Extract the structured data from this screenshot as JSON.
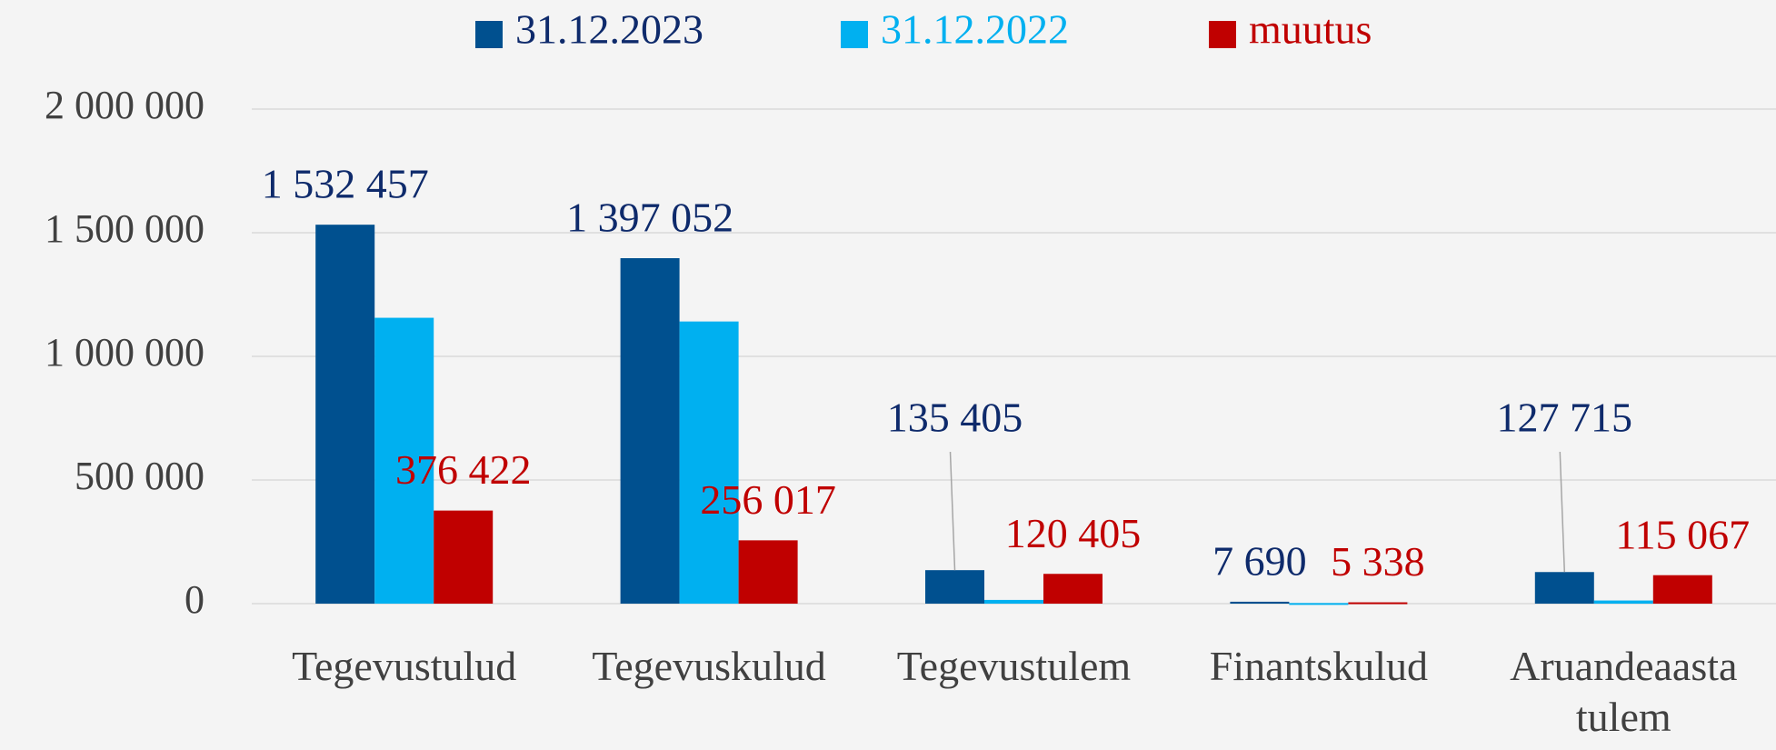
{
  "chart_data": {
    "type": "bar",
    "categories": [
      "Tegevustulud",
      "Tegevuskulud",
      "Tegevustulem",
      "Finantskulud",
      "Aruandeaasta tulem"
    ],
    "series": [
      {
        "name": "31.12.2023",
        "color": "#00508f",
        "label_color": "#0e2a6b",
        "values": [
          1532457,
          1397052,
          135405,
          7690,
          127715
        ],
        "value_labels": [
          "1 532 457",
          "1 397 052",
          "135 405",
          "7 690",
          "127 715"
        ]
      },
      {
        "name": "31.12.2022",
        "color": "#00b0f0",
        "values": [
          1156035,
          1141035,
          15000,
          2352,
          12648
        ]
      },
      {
        "name": "muutus",
        "color": "#c00000",
        "label_color": "#c00000",
        "values": [
          376422,
          256017,
          120405,
          5338,
          115067
        ],
        "value_labels": [
          "376 422",
          "256 017",
          "120 405",
          "5 338",
          "115 067"
        ]
      }
    ],
    "ylim": [
      0,
      2000000
    ],
    "yticks": [
      0,
      {
        "value": 500000,
        "label": "500 000"
      },
      {
        "value": 1000000,
        "label": "1 000 000"
      },
      {
        "value": 1500000,
        "label": "1 500 000"
      },
      {
        "value": 2000000,
        "label": "2 000 000"
      }
    ],
    "grid": true,
    "legend": "top"
  }
}
